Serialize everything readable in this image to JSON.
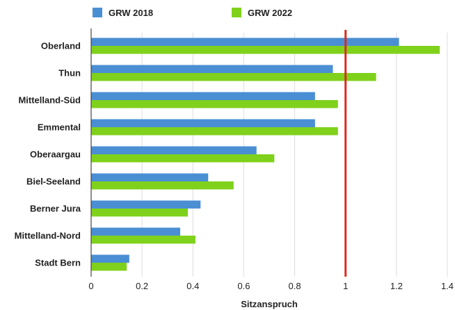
{
  "chart_data": {
    "type": "bar",
    "orientation": "horizontal",
    "categories": [
      "Oberland",
      "Thun",
      "Mittelland-Süd",
      "Emmental",
      "Oberaargau",
      "Biel-Seeland",
      "Berner Jura",
      "Mittelland-Nord",
      "Stadt Bern"
    ],
    "series": [
      {
        "name": "GRW 2018",
        "color": "#4a8fd4",
        "values": [
          1.21,
          0.95,
          0.88,
          0.88,
          0.65,
          0.46,
          0.43,
          0.35,
          0.15
        ]
      },
      {
        "name": "GRW 2022",
        "color": "#7fd11b",
        "values": [
          1.37,
          1.12,
          0.97,
          0.97,
          0.72,
          0.56,
          0.38,
          0.41,
          0.14
        ]
      }
    ],
    "xlabel": "Sitzanspruch",
    "xlim": [
      0,
      1.4
    ],
    "xticks": [
      "0",
      "0.2",
      "0.4",
      "0.6",
      "0.8",
      "1",
      "1.2",
      "1.4"
    ],
    "reference_line": {
      "value": 1,
      "color": "#e0281c"
    },
    "grid": "vertical",
    "legend_position": "top-left"
  }
}
